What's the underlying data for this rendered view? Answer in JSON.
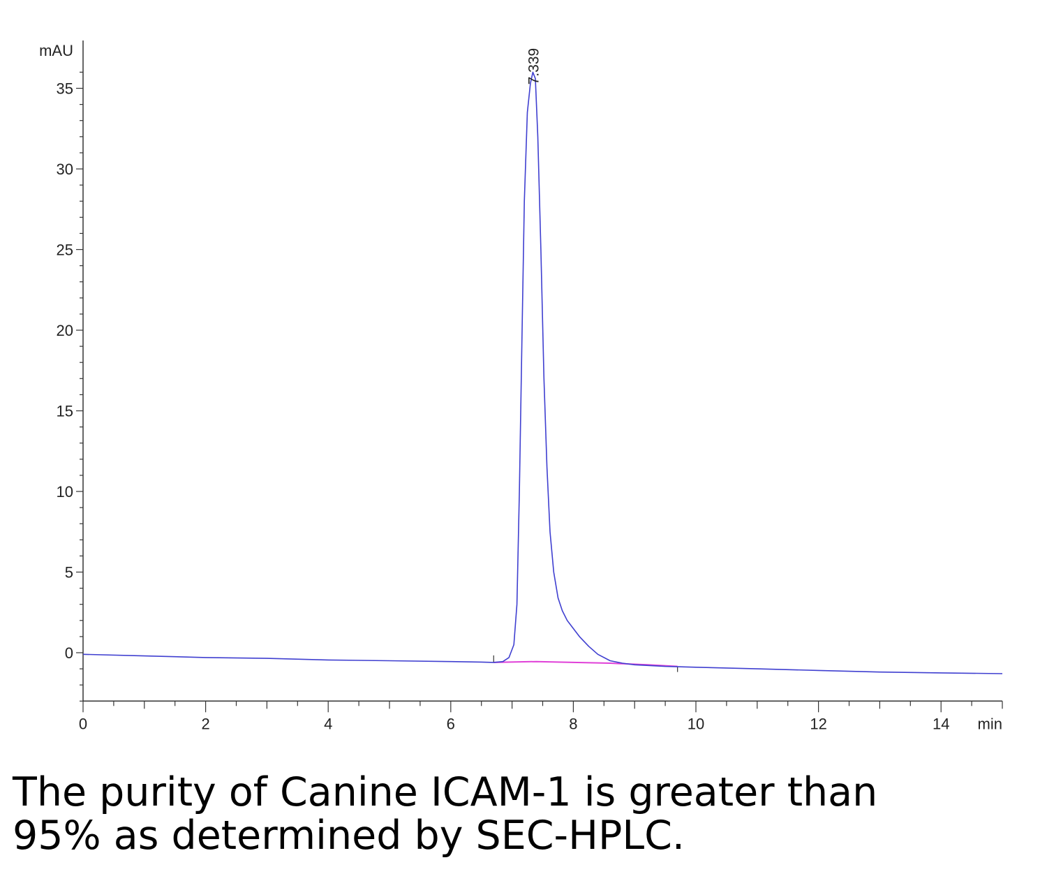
{
  "chart_data": {
    "type": "line",
    "ylabel": "mAU",
    "xlabel": "min",
    "xlim": [
      0,
      15
    ],
    "ylim": [
      -3,
      36
    ],
    "x_ticks": [
      0,
      2,
      4,
      6,
      8,
      10,
      12,
      14
    ],
    "y_ticks": [
      0,
      5,
      10,
      15,
      20,
      25,
      30,
      35
    ],
    "peak": {
      "retention_time": 7.339,
      "label": "7.339",
      "height": 36.0
    },
    "series": [
      {
        "x": [
          0,
          1,
          2,
          3,
          4,
          5,
          6,
          6.5,
          6.7,
          6.85,
          6.95,
          7.03,
          7.08,
          7.12,
          7.16,
          7.2,
          7.25,
          7.3,
          7.339,
          7.38,
          7.42,
          7.47,
          7.52,
          7.57,
          7.62,
          7.68,
          7.75,
          7.82,
          7.9,
          8.0,
          8.1,
          8.25,
          8.4,
          8.6,
          8.8,
          9.0,
          9.5,
          10,
          11,
          12,
          13,
          14,
          15
        ],
        "y": [
          -0.1,
          -0.2,
          -0.3,
          -0.35,
          -0.45,
          -0.5,
          -0.55,
          -0.58,
          -0.6,
          -0.55,
          -0.3,
          0.5,
          3.0,
          10.0,
          19.0,
          28.0,
          33.5,
          35.3,
          36.0,
          35.6,
          32.0,
          25.0,
          17.0,
          11.5,
          7.5,
          5.0,
          3.4,
          2.6,
          2.0,
          1.5,
          1.0,
          0.4,
          -0.1,
          -0.5,
          -0.65,
          -0.75,
          -0.85,
          -0.9,
          -1.0,
          -1.1,
          -1.2,
          -1.25,
          -1.3
        ],
        "color": "#3f3fd0"
      }
    ],
    "baseline": {
      "x": [
        6.7,
        7.4,
        8.0,
        8.6,
        9.2,
        9.7
      ],
      "y": [
        -0.6,
        -0.55,
        -0.6,
        -0.65,
        -0.75,
        -0.85
      ],
      "color": "#e040d8"
    },
    "grid": false
  },
  "caption": {
    "line1": "The purity of Canine ICAM-1 is greater than",
    "line2": "95% as determined by SEC-HPLC."
  }
}
